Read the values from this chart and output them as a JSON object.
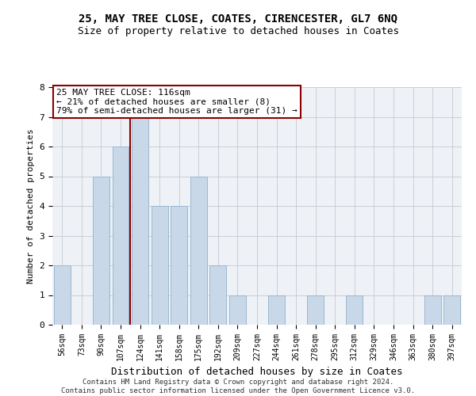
{
  "title1": "25, MAY TREE CLOSE, COATES, CIRENCESTER, GL7 6NQ",
  "title2": "Size of property relative to detached houses in Coates",
  "xlabel": "Distribution of detached houses by size in Coates",
  "ylabel": "Number of detached properties",
  "categories": [
    "56sqm",
    "73sqm",
    "90sqm",
    "107sqm",
    "124sqm",
    "141sqm",
    "158sqm",
    "175sqm",
    "192sqm",
    "209sqm",
    "227sqm",
    "244sqm",
    "261sqm",
    "278sqm",
    "295sqm",
    "312sqm",
    "329sqm",
    "346sqm",
    "363sqm",
    "380sqm",
    "397sqm"
  ],
  "values": [
    2,
    0,
    5,
    6,
    7,
    4,
    4,
    5,
    2,
    1,
    0,
    1,
    0,
    1,
    0,
    1,
    0,
    0,
    0,
    1,
    1
  ],
  "bar_color": "#c8d8e8",
  "bar_edge_color": "#9ab8d0",
  "red_line_x": 3.5,
  "annotation_line1": "25 MAY TREE CLOSE: 116sqm",
  "annotation_line2": "← 21% of detached houses are smaller (8)",
  "annotation_line3": "79% of semi-detached houses are larger (31) →",
  "ylim": [
    0,
    8
  ],
  "yticks": [
    0,
    1,
    2,
    3,
    4,
    5,
    6,
    7,
    8
  ],
  "grid_color": "#c8c8d0",
  "background_color": "#eef2f7",
  "footer": "Contains HM Land Registry data © Crown copyright and database right 2024.\nContains public sector information licensed under the Open Government Licence v3.0.",
  "title1_fontsize": 10,
  "title2_fontsize": 9,
  "xlabel_fontsize": 9,
  "ylabel_fontsize": 8,
  "tick_fontsize": 7,
  "annotation_fontsize": 8,
  "footer_fontsize": 6.5
}
